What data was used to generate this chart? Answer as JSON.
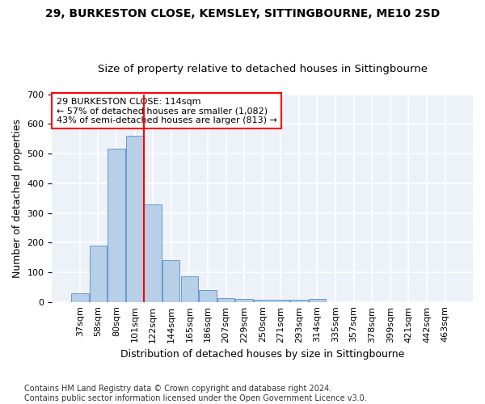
{
  "title1": "29, BURKESTON CLOSE, KEMSLEY, SITTINGBOURNE, ME10 2SD",
  "title2": "Size of property relative to detached houses in Sittingbourne",
  "xlabel": "Distribution of detached houses by size in Sittingbourne",
  "ylabel": "Number of detached properties",
  "categories": [
    "37sqm",
    "58sqm",
    "80sqm",
    "101sqm",
    "122sqm",
    "144sqm",
    "165sqm",
    "186sqm",
    "207sqm",
    "229sqm",
    "250sqm",
    "271sqm",
    "293sqm",
    "314sqm",
    "335sqm",
    "357sqm",
    "378sqm",
    "399sqm",
    "421sqm",
    "442sqm",
    "463sqm"
  ],
  "values": [
    30,
    190,
    518,
    560,
    328,
    140,
    85,
    40,
    13,
    10,
    8,
    8,
    8,
    10,
    0,
    0,
    0,
    0,
    0,
    0,
    0
  ],
  "bar_color": "#b8cfe8",
  "bar_edge_color": "#6699cc",
  "vline_x": 3.5,
  "vline_color": "red",
  "annotation_text": "29 BURKESTON CLOSE: 114sqm\n← 57% of detached houses are smaller (1,082)\n43% of semi-detached houses are larger (813) →",
  "annotation_box_color": "white",
  "annotation_box_edge_color": "red",
  "footnote": "Contains HM Land Registry data © Crown copyright and database right 2024.\nContains public sector information licensed under the Open Government Licence v3.0.",
  "ylim": [
    0,
    700
  ],
  "background_color": "#edf2f9",
  "grid_color": "white",
  "title1_fontsize": 10,
  "title2_fontsize": 9.5,
  "xlabel_fontsize": 9,
  "ylabel_fontsize": 9,
  "tick_fontsize": 8,
  "annotation_fontsize": 8,
  "footnote_fontsize": 7
}
